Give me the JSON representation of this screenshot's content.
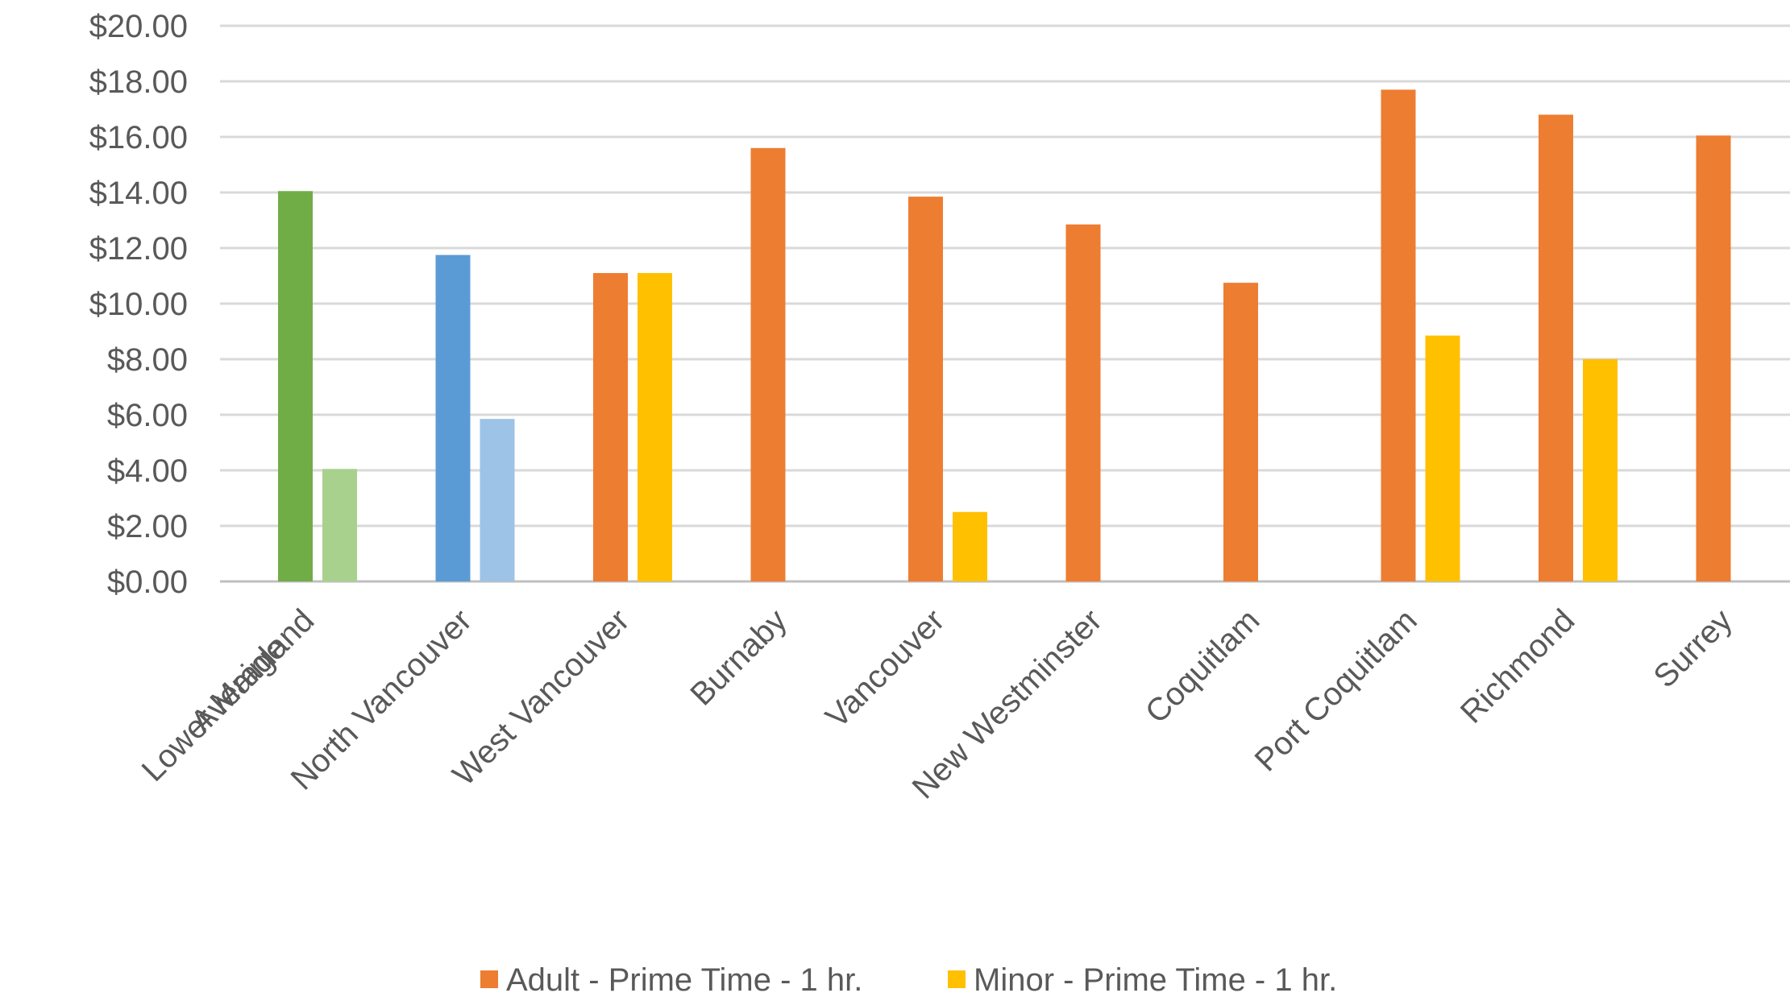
{
  "chart_data": {
    "type": "bar",
    "categories": [
      "Average Lower Mainland",
      "North Vancouver",
      "West Vancouver",
      "Burnaby",
      "Vancouver",
      "New Westminster",
      "Coquitlam",
      "Port Coquitlam",
      "Richmond",
      "Surrey"
    ],
    "category_lines": [
      [
        "Average",
        "Lower Mainland"
      ],
      [
        "North Vancouver"
      ],
      [
        "West Vancouver"
      ],
      [
        "Burnaby"
      ],
      [
        "Vancouver"
      ],
      [
        "New Westminster"
      ],
      [
        "Coquitlam"
      ],
      [
        "Port Coquitlam"
      ],
      [
        "Richmond"
      ],
      [
        "Surrey"
      ]
    ],
    "series": [
      {
        "name": "Adult - Prime Time - 1 hr.",
        "color": "#ED7D31",
        "values": [
          14.05,
          11.75,
          11.1,
          15.6,
          13.85,
          12.85,
          10.75,
          17.7,
          16.8,
          16.05
        ],
        "point_colors": [
          "#70AD47",
          "#5B9BD5",
          null,
          null,
          null,
          null,
          null,
          null,
          null,
          null
        ]
      },
      {
        "name": "Minor - Prime Time - 1 hr.",
        "color": "#FFC000",
        "values": [
          4.05,
          5.85,
          11.1,
          null,
          2.5,
          null,
          null,
          8.85,
          8.0,
          null
        ],
        "point_colors": [
          "#A9D18E",
          "#9DC3E6",
          null,
          null,
          null,
          null,
          null,
          null,
          null,
          null
        ]
      }
    ],
    "ylim": [
      0,
      20
    ],
    "yticks": [
      "$0.00",
      "$2.00",
      "$4.00",
      "$6.00",
      "$8.00",
      "$10.00",
      "$12.00",
      "$14.00",
      "$16.00",
      "$18.00",
      "$20.00"
    ],
    "grid": true,
    "legend": "bottom",
    "title": "",
    "xlabel": "",
    "ylabel": ""
  }
}
